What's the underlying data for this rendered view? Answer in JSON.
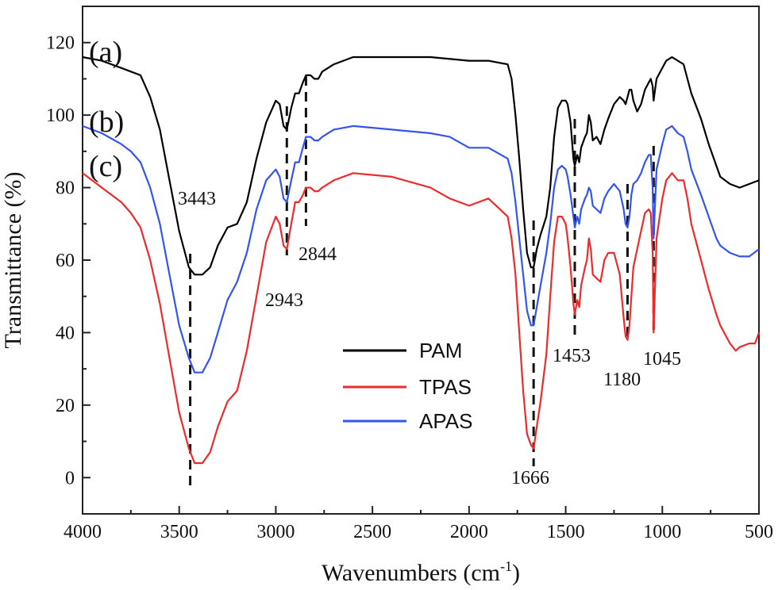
{
  "chart_data": {
    "type": "line",
    "title": "",
    "xlabel": "Wavenumbers (cm",
    "xlabel_sup": "-1",
    "xlabel_tail": ")",
    "ylabel": "Transmittance (%)",
    "xlim": [
      4000,
      500
    ],
    "ylim": [
      -10,
      130
    ],
    "x_ticks": [
      4000,
      3500,
      3000,
      2500,
      2000,
      1500,
      1000,
      500
    ],
    "y_ticks": [
      0,
      20,
      40,
      60,
      80,
      100,
      120
    ],
    "x_tick_labels": [
      "4000",
      "3500",
      "3000",
      "2500",
      "2000",
      "1500",
      "1000",
      "500"
    ],
    "y_tick_labels": [
      "0",
      "20",
      "40",
      "60",
      "80",
      "100",
      "120"
    ],
    "curve_labels": [
      "(a)",
      "(b)",
      "(c)"
    ],
    "legend": {
      "position": "center-bottom",
      "entries": [
        {
          "name": "PAM",
          "color": "#000000"
        },
        {
          "name": "TPAS",
          "color": "#ee2a2a"
        },
        {
          "name": "APAS",
          "color": "#3355ee"
        }
      ]
    },
    "series": [
      {
        "name": "PAM",
        "color": "#000000",
        "points": [
          [
            4000,
            116
          ],
          [
            3900,
            115
          ],
          [
            3800,
            113
          ],
          [
            3750,
            112
          ],
          [
            3700,
            111
          ],
          [
            3650,
            105
          ],
          [
            3600,
            96
          ],
          [
            3550,
            82
          ],
          [
            3500,
            68
          ],
          [
            3450,
            58
          ],
          [
            3420,
            56
          ],
          [
            3380,
            56
          ],
          [
            3340,
            58
          ],
          [
            3300,
            64
          ],
          [
            3250,
            69
          ],
          [
            3200,
            70
          ],
          [
            3150,
            76
          ],
          [
            3100,
            88
          ],
          [
            3050,
            98
          ],
          [
            3000,
            104
          ],
          [
            2980,
            103
          ],
          [
            2960,
            97
          ],
          [
            2943,
            96
          ],
          [
            2920,
            102
          ],
          [
            2900,
            106
          ],
          [
            2880,
            106
          ],
          [
            2860,
            109
          ],
          [
            2844,
            111
          ],
          [
            2820,
            111
          ],
          [
            2800,
            110
          ],
          [
            2780,
            110
          ],
          [
            2760,
            112
          ],
          [
            2700,
            114
          ],
          [
            2600,
            116
          ],
          [
            2400,
            116
          ],
          [
            2200,
            116
          ],
          [
            2000,
            115
          ],
          [
            1900,
            115
          ],
          [
            1800,
            114
          ],
          [
            1780,
            110
          ],
          [
            1760,
            100
          ],
          [
            1740,
            88
          ],
          [
            1720,
            74
          ],
          [
            1700,
            62
          ],
          [
            1680,
            58
          ],
          [
            1666,
            58
          ],
          [
            1650,
            63
          ],
          [
            1630,
            67
          ],
          [
            1600,
            72
          ],
          [
            1580,
            80
          ],
          [
            1560,
            94
          ],
          [
            1540,
            102
          ],
          [
            1520,
            104
          ],
          [
            1500,
            104
          ],
          [
            1490,
            103
          ],
          [
            1475,
            98
          ],
          [
            1460,
            88
          ],
          [
            1453,
            86
          ],
          [
            1440,
            89
          ],
          [
            1430,
            87
          ],
          [
            1420,
            91
          ],
          [
            1400,
            94
          ],
          [
            1390,
            95
          ],
          [
            1380,
            100
          ],
          [
            1370,
            98
          ],
          [
            1360,
            93
          ],
          [
            1340,
            94
          ],
          [
            1320,
            92
          ],
          [
            1300,
            96
          ],
          [
            1280,
            99
          ],
          [
            1250,
            103
          ],
          [
            1220,
            105
          ],
          [
            1200,
            104
          ],
          [
            1190,
            103
          ],
          [
            1180,
            105
          ],
          [
            1170,
            107
          ],
          [
            1160,
            107
          ],
          [
            1150,
            104
          ],
          [
            1130,
            101
          ],
          [
            1110,
            103
          ],
          [
            1090,
            107
          ],
          [
            1070,
            109
          ],
          [
            1060,
            110
          ],
          [
            1050,
            108
          ],
          [
            1045,
            104
          ],
          [
            1030,
            110
          ],
          [
            1000,
            113
          ],
          [
            980,
            115
          ],
          [
            950,
            116
          ],
          [
            920,
            115
          ],
          [
            890,
            114
          ],
          [
            870,
            110
          ],
          [
            850,
            106
          ],
          [
            800,
            99
          ],
          [
            760,
            92
          ],
          [
            720,
            86
          ],
          [
            700,
            83
          ],
          [
            650,
            81
          ],
          [
            600,
            80
          ],
          [
            550,
            81
          ],
          [
            500,
            82
          ]
        ]
      },
      {
        "name": "APAS",
        "color": "#3355ee",
        "points": [
          [
            4000,
            97
          ],
          [
            3900,
            95
          ],
          [
            3800,
            92
          ],
          [
            3750,
            90
          ],
          [
            3700,
            87
          ],
          [
            3650,
            80
          ],
          [
            3600,
            70
          ],
          [
            3550,
            56
          ],
          [
            3500,
            42
          ],
          [
            3450,
            33
          ],
          [
            3420,
            29
          ],
          [
            3380,
            29
          ],
          [
            3340,
            33
          ],
          [
            3300,
            40
          ],
          [
            3250,
            49
          ],
          [
            3200,
            54
          ],
          [
            3150,
            62
          ],
          [
            3100,
            74
          ],
          [
            3050,
            82
          ],
          [
            3000,
            85
          ],
          [
            2980,
            83
          ],
          [
            2960,
            77
          ],
          [
            2943,
            76
          ],
          [
            2920,
            82
          ],
          [
            2900,
            87
          ],
          [
            2880,
            87
          ],
          [
            2860,
            91
          ],
          [
            2844,
            94
          ],
          [
            2820,
            94
          ],
          [
            2800,
            93
          ],
          [
            2780,
            93
          ],
          [
            2760,
            94
          ],
          [
            2700,
            96
          ],
          [
            2600,
            97
          ],
          [
            2400,
            96
          ],
          [
            2200,
            95
          ],
          [
            2100,
            94
          ],
          [
            2000,
            91
          ],
          [
            1900,
            91
          ],
          [
            1800,
            88
          ],
          [
            1780,
            84
          ],
          [
            1760,
            76
          ],
          [
            1740,
            66
          ],
          [
            1720,
            56
          ],
          [
            1700,
            46
          ],
          [
            1680,
            42
          ],
          [
            1666,
            42
          ],
          [
            1650,
            47
          ],
          [
            1630,
            53
          ],
          [
            1600,
            62
          ],
          [
            1580,
            70
          ],
          [
            1560,
            80
          ],
          [
            1540,
            85
          ],
          [
            1520,
            86
          ],
          [
            1500,
            85
          ],
          [
            1490,
            83
          ],
          [
            1475,
            78
          ],
          [
            1460,
            72
          ],
          [
            1453,
            69
          ],
          [
            1440,
            72
          ],
          [
            1430,
            70
          ],
          [
            1420,
            74
          ],
          [
            1400,
            77
          ],
          [
            1390,
            78
          ],
          [
            1380,
            80
          ],
          [
            1370,
            79
          ],
          [
            1360,
            75
          ],
          [
            1340,
            74
          ],
          [
            1320,
            73
          ],
          [
            1300,
            77
          ],
          [
            1280,
            79
          ],
          [
            1250,
            81
          ],
          [
            1220,
            79
          ],
          [
            1200,
            74
          ],
          [
            1190,
            70
          ],
          [
            1180,
            69
          ],
          [
            1170,
            72
          ],
          [
            1160,
            78
          ],
          [
            1150,
            81
          ],
          [
            1130,
            82
          ],
          [
            1110,
            84
          ],
          [
            1090,
            87
          ],
          [
            1070,
            89
          ],
          [
            1060,
            89
          ],
          [
            1050,
            80
          ],
          [
            1045,
            66
          ],
          [
            1030,
            85
          ],
          [
            1000,
            92
          ],
          [
            980,
            96
          ],
          [
            950,
            97
          ],
          [
            920,
            95
          ],
          [
            890,
            94
          ],
          [
            870,
            90
          ],
          [
            850,
            85
          ],
          [
            800,
            78
          ],
          [
            760,
            72
          ],
          [
            720,
            66
          ],
          [
            700,
            64
          ],
          [
            650,
            62
          ],
          [
            600,
            61
          ],
          [
            550,
            61
          ],
          [
            500,
            63
          ]
        ]
      },
      {
        "name": "TPAS",
        "color": "#ee2a2a",
        "points": [
          [
            4000,
            84
          ],
          [
            3900,
            80
          ],
          [
            3800,
            76
          ],
          [
            3750,
            73
          ],
          [
            3700,
            69
          ],
          [
            3650,
            60
          ],
          [
            3600,
            48
          ],
          [
            3550,
            33
          ],
          [
            3500,
            18
          ],
          [
            3450,
            8
          ],
          [
            3420,
            4
          ],
          [
            3380,
            4
          ],
          [
            3340,
            7
          ],
          [
            3300,
            14
          ],
          [
            3250,
            21
          ],
          [
            3200,
            24
          ],
          [
            3150,
            35
          ],
          [
            3100,
            50
          ],
          [
            3050,
            65
          ],
          [
            3000,
            72
          ],
          [
            2980,
            70
          ],
          [
            2960,
            64
          ],
          [
            2943,
            63
          ],
          [
            2920,
            70
          ],
          [
            2900,
            76
          ],
          [
            2880,
            76
          ],
          [
            2860,
            78
          ],
          [
            2844,
            80
          ],
          [
            2820,
            80
          ],
          [
            2800,
            79
          ],
          [
            2780,
            79
          ],
          [
            2760,
            80
          ],
          [
            2700,
            82
          ],
          [
            2600,
            84
          ],
          [
            2400,
            83
          ],
          [
            2200,
            80
          ],
          [
            2100,
            77
          ],
          [
            2000,
            75
          ],
          [
            1900,
            77
          ],
          [
            1800,
            72
          ],
          [
            1780,
            66
          ],
          [
            1760,
            56
          ],
          [
            1740,
            40
          ],
          [
            1720,
            24
          ],
          [
            1700,
            12
          ],
          [
            1680,
            9
          ],
          [
            1666,
            8
          ],
          [
            1650,
            14
          ],
          [
            1630,
            21
          ],
          [
            1600,
            34
          ],
          [
            1580,
            50
          ],
          [
            1560,
            65
          ],
          [
            1540,
            72
          ],
          [
            1520,
            72
          ],
          [
            1500,
            70
          ],
          [
            1490,
            66
          ],
          [
            1475,
            58
          ],
          [
            1460,
            48
          ],
          [
            1453,
            45
          ],
          [
            1440,
            49
          ],
          [
            1430,
            47
          ],
          [
            1420,
            53
          ],
          [
            1400,
            58
          ],
          [
            1390,
            60
          ],
          [
            1380,
            66
          ],
          [
            1370,
            63
          ],
          [
            1360,
            56
          ],
          [
            1340,
            55
          ],
          [
            1320,
            54
          ],
          [
            1300,
            60
          ],
          [
            1280,
            62
          ],
          [
            1250,
            62
          ],
          [
            1220,
            56
          ],
          [
            1200,
            44
          ],
          [
            1190,
            39
          ],
          [
            1180,
            38
          ],
          [
            1170,
            42
          ],
          [
            1160,
            50
          ],
          [
            1150,
            58
          ],
          [
            1130,
            63
          ],
          [
            1110,
            68
          ],
          [
            1090,
            73
          ],
          [
            1070,
            74
          ],
          [
            1060,
            73
          ],
          [
            1050,
            62
          ],
          [
            1045,
            40
          ],
          [
            1030,
            66
          ],
          [
            1000,
            77
          ],
          [
            980,
            82
          ],
          [
            950,
            84
          ],
          [
            920,
            82
          ],
          [
            890,
            82
          ],
          [
            870,
            77
          ],
          [
            850,
            70
          ],
          [
            800,
            60
          ],
          [
            760,
            52
          ],
          [
            720,
            45
          ],
          [
            700,
            42
          ],
          [
            650,
            37
          ],
          [
            620,
            35
          ],
          [
            600,
            36
          ],
          [
            550,
            37
          ],
          [
            520,
            37
          ],
          [
            500,
            40
          ]
        ]
      }
    ],
    "reference_lines": [
      {
        "x": 3443,
        "label": "3443",
        "label_side": "above"
      },
      {
        "x": 2943,
        "label": "2943",
        "label_side": "below"
      },
      {
        "x": 2844,
        "label": "2844",
        "label_side": "below"
      },
      {
        "x": 1666,
        "label": "1666",
        "label_side": "below"
      },
      {
        "x": 1453,
        "label": "1453",
        "label_side": "below"
      },
      {
        "x": 1180,
        "label": "1180",
        "label_side": "below"
      },
      {
        "x": 1045,
        "label": "1045",
        "label_side": "below"
      }
    ]
  }
}
